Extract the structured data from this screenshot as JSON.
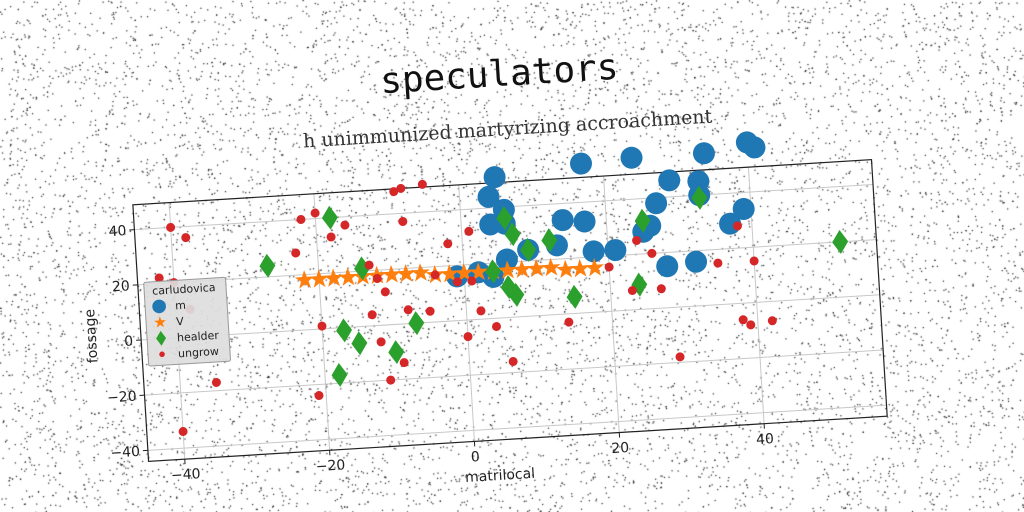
{
  "chart_data": {
    "type": "scatter",
    "title": "speculators",
    "subtitle": "h unimmunized martyrizing accroachment",
    "xlabel": "matrilocal",
    "ylabel": "fossage",
    "xlim": [
      -45,
      57
    ],
    "ylim": [
      -44,
      49
    ],
    "xticks": [
      -40,
      -20,
      0,
      20,
      40
    ],
    "yticks": [
      -40,
      -20,
      0,
      20,
      40
    ],
    "grid": true,
    "legend": {
      "title": "carludovica",
      "position": "center-left"
    },
    "series": [
      {
        "name": "m",
        "marker": "circle",
        "color": "#1f77b4",
        "points": [
          [
            4,
            44
          ],
          [
            6,
            39
          ],
          [
            4,
            34
          ],
          [
            6,
            34
          ],
          [
            5,
            51
          ],
          [
            17,
            54
          ],
          [
            24,
            55
          ],
          [
            34,
            55
          ],
          [
            40,
            58
          ],
          [
            41,
            56
          ],
          [
            29,
            46
          ],
          [
            33,
            45
          ],
          [
            33,
            40
          ],
          [
            39,
            34
          ],
          [
            37,
            29
          ],
          [
            27,
            38
          ],
          [
            14,
            34
          ],
          [
            17,
            33
          ],
          [
            13,
            25
          ],
          [
            18,
            22
          ],
          [
            21,
            22
          ],
          [
            25,
            28
          ],
          [
            26,
            30
          ],
          [
            32,
            16
          ],
          [
            28,
            15
          ],
          [
            6,
            21
          ],
          [
            2,
            17
          ],
          [
            4,
            15
          ],
          [
            -1,
            16
          ],
          [
            9,
            24
          ]
        ]
      },
      {
        "name": "V",
        "marker": "star",
        "color": "#ff7f0e",
        "points": [
          [
            -22,
            18
          ],
          [
            -20,
            18
          ],
          [
            -18,
            18
          ],
          [
            -16,
            18
          ],
          [
            -14,
            18
          ],
          [
            -12,
            18
          ],
          [
            -10,
            18
          ],
          [
            -8,
            18
          ],
          [
            -6,
            18
          ],
          [
            -4,
            17
          ],
          [
            -2,
            17
          ],
          [
            0,
            17
          ],
          [
            2,
            17
          ],
          [
            4,
            17
          ],
          [
            6,
            17
          ],
          [
            8,
            17
          ],
          [
            10,
            17
          ],
          [
            12,
            17
          ],
          [
            14,
            16
          ],
          [
            16,
            16
          ],
          [
            18,
            16
          ]
        ]
      },
      {
        "name": "healder",
        "marker": "diamond",
        "color": "#2ca02c",
        "points": [
          [
            -27,
            24
          ],
          [
            -18,
            40
          ],
          [
            -14,
            21
          ],
          [
            6,
            36
          ],
          [
            7,
            30
          ],
          [
            9,
            24
          ],
          [
            12,
            27
          ],
          [
            25,
            32
          ],
          [
            33,
            39
          ],
          [
            4,
            17
          ],
          [
            6,
            11
          ],
          [
            7,
            8
          ],
          [
            15,
            6
          ],
          [
            24,
            9
          ],
          [
            -17,
            -1
          ],
          [
            -15,
            -6
          ],
          [
            -10,
            -10
          ],
          [
            -7,
            0
          ],
          [
            -18,
            -17
          ],
          [
            52,
            20
          ]
        ]
      },
      {
        "name": "ungrow",
        "marker": "dot",
        "color": "#d62728",
        "points": [
          [
            -40,
            40
          ],
          [
            -38,
            36
          ],
          [
            -42,
            22
          ],
          [
            -40,
            20
          ],
          [
            -18,
            33
          ],
          [
            -20,
            42
          ],
          [
            -16,
            37
          ],
          [
            -13,
            22
          ],
          [
            -12,
            17
          ],
          [
            -11,
            12
          ],
          [
            -9,
            48
          ],
          [
            -8,
            37
          ],
          [
            -8,
            49
          ],
          [
            -5,
            50
          ],
          [
            -4,
            17
          ],
          [
            -2,
            28
          ],
          [
            1,
            32
          ],
          [
            1,
            14
          ],
          [
            -1,
            14
          ],
          [
            -23,
            28
          ],
          [
            -20,
            1
          ],
          [
            -13,
            4
          ],
          [
            -8,
            5
          ],
          [
            -5,
            4
          ],
          [
            -12,
            -6
          ],
          [
            -9,
            -14
          ],
          [
            -11,
            -20
          ],
          [
            0,
            -6
          ],
          [
            2,
            3
          ],
          [
            4,
            -3
          ],
          [
            6,
            -16
          ],
          [
            14,
            -3
          ],
          [
            20,
            16
          ],
          [
            24,
            25
          ],
          [
            26,
            20
          ],
          [
            23,
            7
          ],
          [
            27,
            7
          ],
          [
            29,
            -18
          ],
          [
            35,
            15
          ],
          [
            38,
            28
          ],
          [
            40,
            15
          ],
          [
            42,
            -7
          ],
          [
            39,
            -8
          ],
          [
            38,
            -6
          ],
          [
            -35,
            -17
          ],
          [
            -21,
            -24
          ],
          [
            -40,
            -34
          ],
          [
            -22,
            40
          ],
          [
            -38,
            10
          ]
        ]
      }
    ]
  }
}
